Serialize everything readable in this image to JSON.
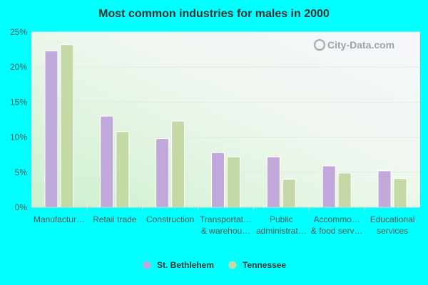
{
  "chart_data": {
    "type": "bar",
    "title": "Most common industries for males in 2000",
    "xlabel": "",
    "ylabel": "",
    "ylim": [
      0,
      25
    ],
    "yticks": [
      "0%",
      "5%",
      "10%",
      "15%",
      "20%",
      "25%"
    ],
    "categories": [
      [
        "Manufactur…"
      ],
      [
        "Retail trade"
      ],
      [
        "Construction"
      ],
      [
        "Transportat…",
        "& warehou…"
      ],
      [
        "Public",
        "administrat…"
      ],
      [
        "Accommo…",
        "& food serv…"
      ],
      [
        "Educational",
        "services"
      ]
    ],
    "series": [
      {
        "name": "St. Bethlehem",
        "color": "#c0a8db",
        "values": [
          22.3,
          13.0,
          9.8,
          7.8,
          7.2,
          5.9,
          5.2
        ]
      },
      {
        "name": "Tennessee",
        "color": "#c4d9a5",
        "values": [
          23.2,
          10.8,
          12.3,
          7.2,
          4.0,
          4.9,
          4.1
        ]
      }
    ],
    "legend_position": "bottom",
    "grid": true
  },
  "watermark": "City-Data.com"
}
